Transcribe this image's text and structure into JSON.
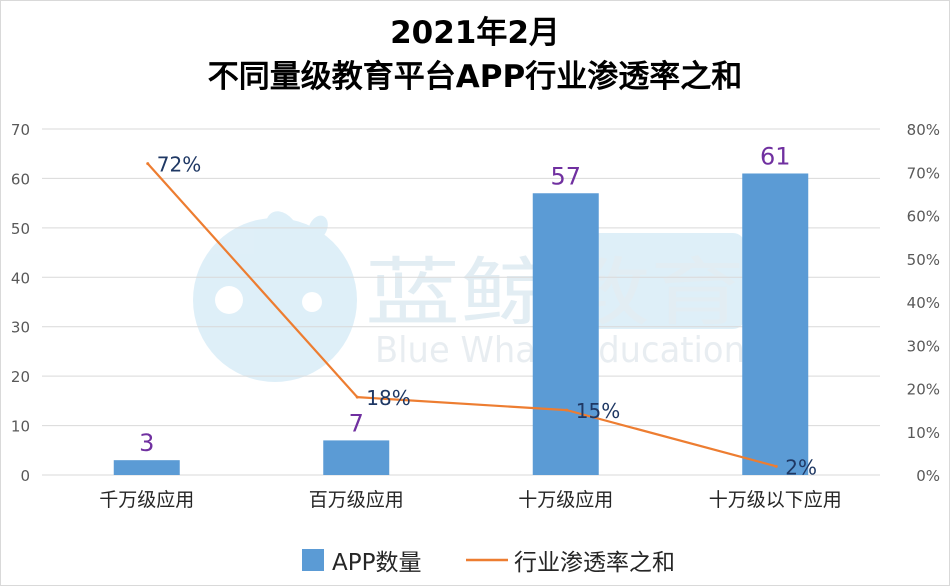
{
  "chart_data": {
    "type": "bar+line",
    "title": "2021年2月",
    "subtitle": "不同量级教育平台APP行业渗透率之和",
    "categories": [
      "千万级应用",
      "百万级应用",
      "十万级应用",
      "十万级以下应用"
    ],
    "series": [
      {
        "name": "APP数量",
        "type": "bar",
        "axis": "left",
        "values": [
          3,
          7,
          57,
          61
        ],
        "labels": [
          "3",
          "7",
          "57",
          "61"
        ],
        "color": "#5b9bd5",
        "label_color": "#7030a0"
      },
      {
        "name": "行业渗透率之和",
        "type": "line",
        "axis": "right",
        "values": [
          72,
          18,
          15,
          2
        ],
        "labels": [
          "72%",
          "18%",
          "15%",
          "2%"
        ],
        "color": "#ed7d31",
        "label_color": "#1f3864"
      }
    ],
    "y_left": {
      "min": 0,
      "max": 70,
      "step": 10,
      "ticks": [
        "0",
        "10",
        "20",
        "30",
        "40",
        "50",
        "60",
        "70"
      ]
    },
    "y_right": {
      "min": 0,
      "max": 80,
      "step": 10,
      "ticks": [
        "0%",
        "10%",
        "20%",
        "30%",
        "40%",
        "50%",
        "60%",
        "70%",
        "80%"
      ]
    },
    "grid": true,
    "legend_position": "bottom"
  },
  "watermark": {
    "text_cn": "蓝鲸教育",
    "text_en": "Blue Whale Education"
  }
}
